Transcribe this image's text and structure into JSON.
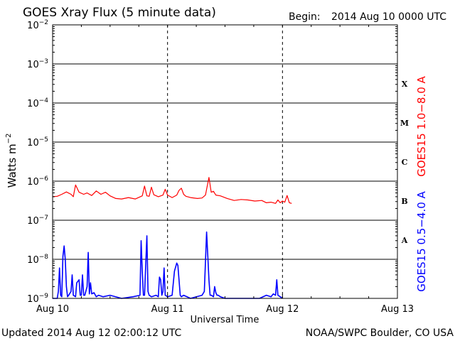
{
  "header": {
    "title": "GOES Xray Flux (5 minute data)",
    "begin_label": "Begin:",
    "begin_value": "2014 Aug 10 0000 UTC"
  },
  "footer": {
    "updated": "Updated 2014 Aug 12 02:00:12 UTC",
    "source": "NOAA/SWPC Boulder, CO USA"
  },
  "colors": {
    "long_channel": "#ff0000",
    "short_channel": "#0000ff",
    "grid": "#000000"
  },
  "chart_data": {
    "type": "line",
    "title": "GOES Xray Flux (5 minute data)",
    "xlabel": "Universal Time",
    "ylabel_base": "Watts m",
    "ylabel_exp": "−2",
    "y_scale": "log",
    "ylim": [
      1e-09,
      0.01
    ],
    "y_ticks": [
      {
        "value": 0.01,
        "base": "10",
        "exp": "−2"
      },
      {
        "value": 0.001,
        "base": "10",
        "exp": "−3"
      },
      {
        "value": 0.0001,
        "base": "10",
        "exp": "−4"
      },
      {
        "value": 1e-05,
        "base": "10",
        "exp": "−5"
      },
      {
        "value": 1e-06,
        "base": "10",
        "exp": "−6"
      },
      {
        "value": 1e-07,
        "base": "10",
        "exp": "−7"
      },
      {
        "value": 1e-08,
        "base": "10",
        "exp": "−8"
      },
      {
        "value": 1e-09,
        "base": "10",
        "exp": "−9"
      }
    ],
    "x_unit": "days since 2014 Aug 10 0000 UTC",
    "xlim": [
      0,
      3
    ],
    "x_ticks": [
      {
        "value": 0,
        "label": "Aug 10"
      },
      {
        "value": 1,
        "label": "Aug 11"
      },
      {
        "value": 2,
        "label": "Aug 12"
      },
      {
        "value": 3,
        "label": "Aug 13"
      }
    ],
    "grid": true,
    "flare_classes": [
      {
        "label": "X",
        "value": 0.00032
      },
      {
        "label": "M",
        "value": 3.2e-05
      },
      {
        "label": "C",
        "value": 3.2e-06
      },
      {
        "label": "B",
        "value": 3.2e-07
      },
      {
        "label": "A",
        "value": 3.2e-08
      }
    ],
    "series": [
      {
        "name": "GOES15 1.0−8.0 A",
        "color": "#ff0000",
        "x": [
          0,
          0.04,
          0.08,
          0.12,
          0.16,
          0.18,
          0.2,
          0.23,
          0.27,
          0.3,
          0.34,
          0.38,
          0.42,
          0.46,
          0.5,
          0.55,
          0.6,
          0.66,
          0.72,
          0.78,
          0.8,
          0.82,
          0.84,
          0.86,
          0.88,
          0.92,
          0.96,
          0.98,
          1.0,
          1.04,
          1.08,
          1.1,
          1.12,
          1.14,
          1.16,
          1.2,
          1.26,
          1.3,
          1.33,
          1.36,
          1.38,
          1.4,
          1.42,
          1.46,
          1.52,
          1.58,
          1.64,
          1.7,
          1.76,
          1.82,
          1.86,
          1.9,
          1.94,
          1.96,
          1.98,
          2.0,
          2.02,
          2.04,
          2.06,
          2.08
        ],
        "values": [
          4e-07,
          4.1e-07,
          4.6e-07,
          5.3e-07,
          4.6e-07,
          4e-07,
          8e-07,
          5.2e-07,
          4.6e-07,
          5e-07,
          4.3e-07,
          5.6e-07,
          4.6e-07,
          5.2e-07,
          4.2e-07,
          3.6e-07,
          3.5e-07,
          3.8e-07,
          3.5e-07,
          4.2e-07,
          7.5e-07,
          4.2e-07,
          4.1e-07,
          7e-07,
          4.5e-07,
          4e-07,
          4.4e-07,
          6.2e-07,
          4.4e-07,
          3.8e-07,
          4.4e-07,
          5.8e-07,
          6.6e-07,
          4.6e-07,
          4.1e-07,
          3.8e-07,
          3.6e-07,
          3.7e-07,
          4.4e-07,
          1.25e-06,
          5.2e-07,
          5.5e-07,
          4.4e-07,
          4.2e-07,
          3.6e-07,
          3.2e-07,
          3.4e-07,
          3.3e-07,
          3.1e-07,
          3.2e-07,
          2.8e-07,
          2.9e-07,
          2.7e-07,
          3.3e-07,
          2.8e-07,
          3.1e-07,
          2.9e-07,
          4.3e-07,
          2.8e-07,
          2.7e-07
        ]
      },
      {
        "name": "GOES15 0.5−4.0 A",
        "color": "#0000ff",
        "x": [
          0,
          0.04,
          0.05,
          0.06,
          0.07,
          0.08,
          0.09,
          0.1,
          0.11,
          0.12,
          0.13,
          0.14,
          0.16,
          0.17,
          0.18,
          0.2,
          0.21,
          0.23,
          0.24,
          0.25,
          0.26,
          0.27,
          0.28,
          0.3,
          0.31,
          0.32,
          0.33,
          0.34,
          0.36,
          0.38,
          0.4,
          0.44,
          0.5,
          0.6,
          0.7,
          0.76,
          0.77,
          0.78,
          0.79,
          0.8,
          0.82,
          0.83,
          0.84,
          0.86,
          0.9,
          0.92,
          0.93,
          0.94,
          0.95,
          0.96,
          0.97,
          0.98,
          1.0,
          1.04,
          1.06,
          1.08,
          1.09,
          1.1,
          1.11,
          1.12,
          1.14,
          1.2,
          1.3,
          1.32,
          1.34,
          1.35,
          1.36,
          1.37,
          1.38,
          1.4,
          1.41,
          1.42,
          1.43,
          1.44,
          1.46,
          1.5,
          1.6,
          1.7,
          1.8,
          1.86,
          1.9,
          1.92,
          1.94,
          1.95,
          1.96,
          1.98,
          2.0
        ],
        "values": [
          1e-09,
          1e-09,
          1.5e-09,
          6e-09,
          1.2e-09,
          1.1e-09,
          1.2e-08,
          2.2e-08,
          1e-08,
          2e-09,
          1.1e-09,
          1.2e-09,
          1.5e-09,
          4e-09,
          1.2e-09,
          1.1e-09,
          2.5e-09,
          3e-09,
          1.2e-09,
          1.2e-09,
          4e-09,
          1.2e-09,
          1.2e-09,
          2e-09,
          1.5e-08,
          1.3e-09,
          2.5e-09,
          1.3e-09,
          1.4e-09,
          1.1e-09,
          1.2e-09,
          1.1e-09,
          1.2e-09,
          1e-09,
          1.1e-09,
          1.2e-09,
          3e-08,
          5e-09,
          1.2e-09,
          1.2e-09,
          4e-08,
          1.5e-09,
          1.2e-09,
          1.1e-09,
          1.2e-09,
          1.1e-09,
          3.5e-09,
          3e-09,
          1.2e-09,
          1.5e-09,
          6e-09,
          1.2e-09,
          1.1e-09,
          1.2e-09,
          5e-09,
          8e-09,
          7e-09,
          3e-09,
          1.2e-09,
          1.1e-09,
          1.2e-09,
          1e-09,
          1.2e-09,
          1.5e-09,
          5e-08,
          1.2e-08,
          3e-09,
          1.2e-09,
          1.2e-09,
          1.1e-09,
          2e-09,
          1.4e-09,
          1.2e-09,
          1.2e-09,
          1.1e-09,
          1e-09,
          1e-09,
          1e-09,
          1e-09,
          1.2e-09,
          1.1e-09,
          1.3e-09,
          1.2e-09,
          3e-09,
          1.2e-09,
          1.1e-09,
          1e-09
        ]
      }
    ]
  }
}
